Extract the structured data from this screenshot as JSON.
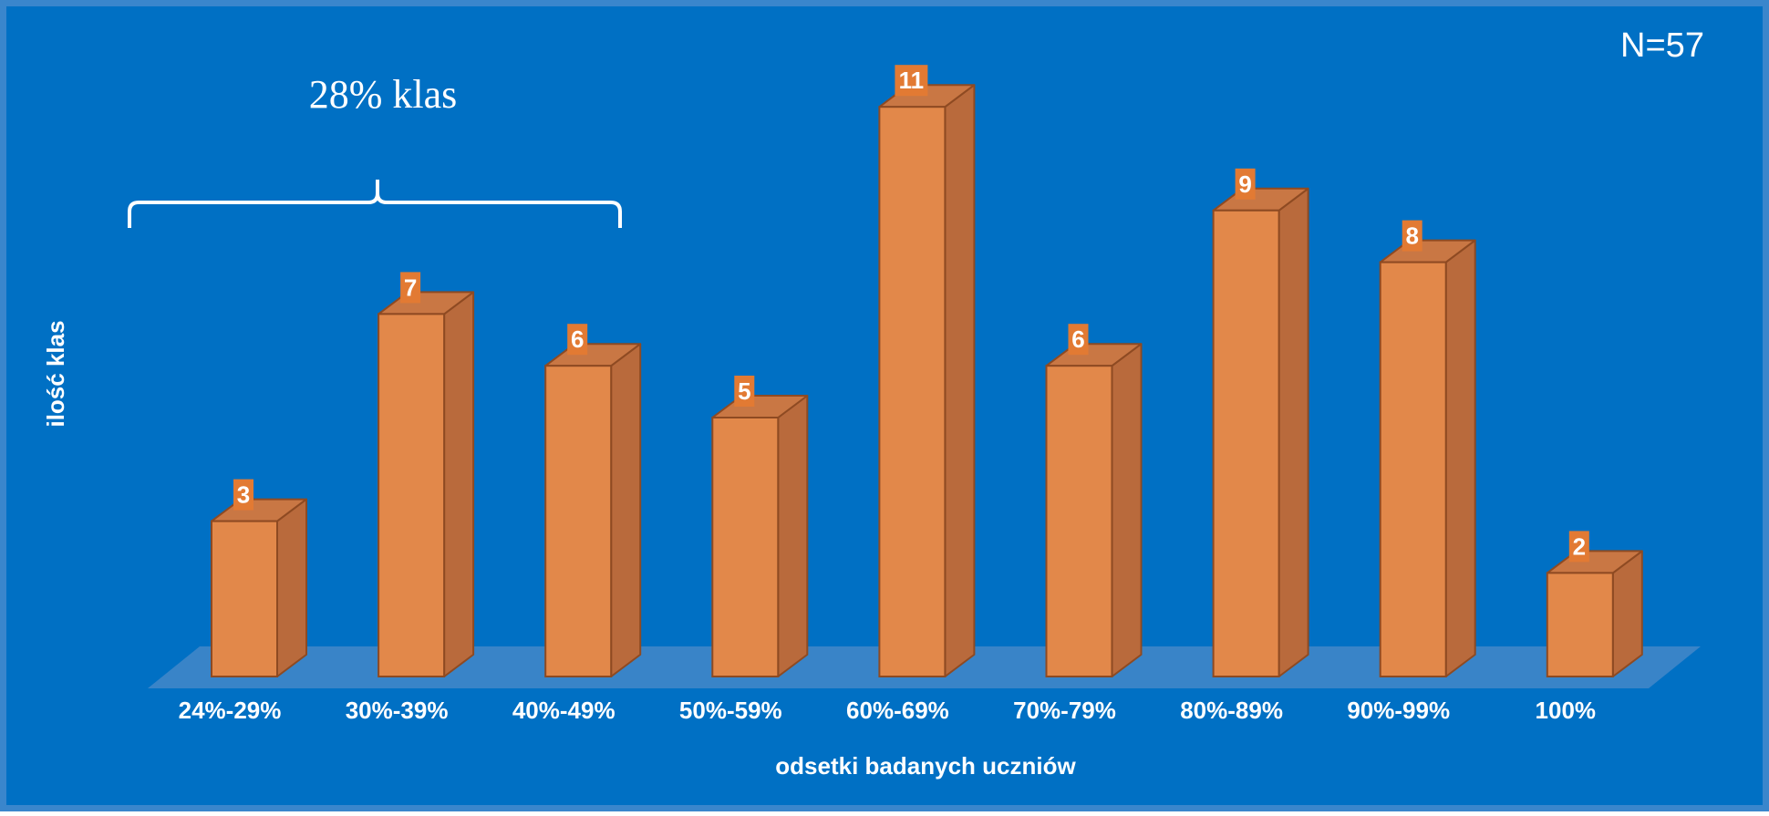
{
  "chart_data": {
    "type": "bar",
    "categories": [
      "24%-29%",
      "30%-39%",
      "40%-49%",
      "50%-59%",
      "60%-69%",
      "70%-79%",
      "80%-89%",
      "90%-99%",
      "100%"
    ],
    "series": [
      {
        "values": [
          3,
          7,
          6,
          5,
          11,
          6,
          9,
          8,
          2
        ]
      }
    ],
    "xlabel": "odsetki badanych uczniów",
    "ylabel": "ilość klas",
    "ylim": [
      0,
      11
    ],
    "grid": false,
    "legend": "none",
    "annotations": {
      "sample_size": "N=57",
      "bracket_label": "28% klas",
      "bracket_span": [
        "24%-29%",
        "40%-49%"
      ]
    },
    "colors": {
      "background": "#0070C4",
      "border": "#3A86CC",
      "bar_front": "#E2884A",
      "bar_side": "#B96A3C",
      "bar_top": "#C97744",
      "bar_outline": "#8E4A22",
      "value_label_bg": "#E27A33",
      "floor": "#3F86C9",
      "text": "#FFFFFF"
    }
  }
}
